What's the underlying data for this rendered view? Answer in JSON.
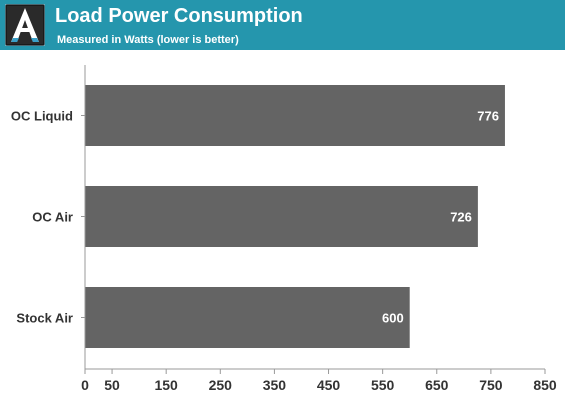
{
  "header": {
    "title": "Load Power Consumption",
    "subtitle": "Measured in Watts (lower is better)",
    "logo_letter": "A",
    "logo_icon": "anandtech-logo-icon",
    "background_color": "#2596ad"
  },
  "chart_data": {
    "type": "bar",
    "orientation": "horizontal",
    "categories": [
      "OC Liquid",
      "OC Air",
      "Stock Air"
    ],
    "values": [
      776,
      726,
      600
    ],
    "data_labels": [
      "776",
      "726",
      "600"
    ],
    "xlim": [
      0,
      850
    ],
    "x_ticks": [
      "0",
      "50",
      "150",
      "250",
      "350",
      "450",
      "550",
      "650",
      "750",
      "850"
    ],
    "x_tick_values": [
      0,
      50,
      150,
      250,
      350,
      450,
      550,
      650,
      750,
      850
    ],
    "bar_color": "#646464",
    "grid": false,
    "legend": "none"
  }
}
